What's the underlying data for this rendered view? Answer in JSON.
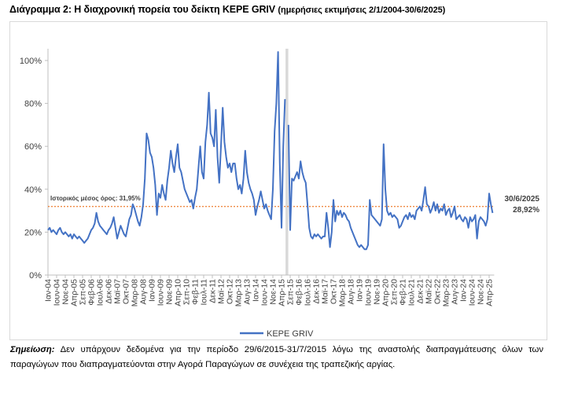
{
  "title": {
    "main": "Διάγραμμα 2: Η διαχρονική πορεία του δείκτη ΚΕΡΕ GRIV",
    "sub": "(ημερήσιες εκτιμήσεις 2/1/2004-30/6/2025)"
  },
  "note": {
    "label": "Σημείωση:",
    "text": "Δεν υπάρχουν δεδομένα για την περίοδο 29/6/2015-31/7/2015 λόγω της αναστολής διαπραγμάτευσης όλων των παραγώγων που διαπραγματεύονται στην Αγορά Παραγώγων σε συνέχεια της τραπεζικής αργίας."
  },
  "chart_data": {
    "type": "line",
    "title": "",
    "xlabel": "",
    "ylabel": "",
    "ylim": [
      0,
      110
    ],
    "y_ticks": [
      "0%",
      "20%",
      "40%",
      "60%",
      "80%",
      "100%"
    ],
    "y_tick_values": [
      0,
      20,
      40,
      60,
      80,
      100
    ],
    "x_start": "2004-01",
    "x_end": "2025-06",
    "x_tick_labels": [
      "Ιαν-04",
      "Ιουν-04",
      "Νοε-04",
      "Απρ-05",
      "Σεπ-05",
      "Φεβ-06",
      "Ιουλ-06",
      "Δεκ-06",
      "Μαϊ-07",
      "Οκτ-07",
      "Μαρ-08",
      "Αυγ-08",
      "Ιαν-09",
      "Ιουν-09",
      "Νοε-09",
      "Απρ-10",
      "Σεπ-10",
      "Φεβ-11",
      "Ιουλ-11",
      "Δεκ-11",
      "Μαϊ-12",
      "Οκτ-12",
      "Μαρ-13",
      "Αυγ-13",
      "Ιαν-14",
      "Ιουν-14",
      "Νοε-14",
      "Απρ-15",
      "Σεπ-15",
      "Φεβ-16",
      "Ιουλ-16",
      "Δεκ-16",
      "Μαϊ-17",
      "Οκτ-17",
      "Μαρ-18",
      "Αυγ-18",
      "Ιαν-19",
      "Ιουν-19",
      "Νοε-19",
      "Απρ-20",
      "Σεπ-20",
      "Φεβ-21",
      "Ιουλ-21",
      "Δεκ-21",
      "Μαϊ-22",
      "Οκτ-22",
      "Μαρ-23",
      "Αυγ-23",
      "Ιαν-24",
      "Ιουν-24",
      "Νοε-24",
      "Απρ-25"
    ],
    "grid": false,
    "legend_position": "bottom",
    "series": [
      {
        "name": "KEPE GRIV",
        "color": "#4472C4",
        "frequency": "monthly",
        "values": [
          21,
          22,
          20,
          21,
          20,
          19,
          21,
          22,
          20,
          19,
          20,
          19,
          18,
          19,
          17,
          19,
          18,
          17,
          18,
          17,
          16,
          15,
          16,
          17,
          19,
          21,
          22,
          24,
          29,
          25,
          23,
          22,
          21,
          20,
          19,
          21,
          22,
          24,
          27,
          22,
          17,
          20,
          23,
          21,
          19,
          18,
          22,
          26,
          28,
          33,
          31,
          28,
          25,
          23,
          27,
          33,
          45,
          66,
          63,
          57,
          55,
          50,
          42,
          28,
          38,
          36,
          42,
          38,
          35,
          44,
          50,
          58,
          52,
          48,
          55,
          61,
          50,
          48,
          44,
          40,
          38,
          36,
          34,
          35,
          31,
          36,
          40,
          50,
          60,
          48,
          45,
          62,
          70,
          85,
          66,
          64,
          60,
          77,
          55,
          43,
          60,
          78,
          62,
          55,
          50,
          52,
          48,
          52,
          52,
          45,
          40,
          42,
          38,
          45,
          58,
          48,
          43,
          40,
          38,
          35,
          28,
          32,
          35,
          39,
          35,
          31,
          33,
          30,
          28,
          26,
          40,
          67,
          80,
          104,
          52,
          22,
          60,
          82,
          null,
          70,
          21,
          45,
          44,
          46,
          48,
          45,
          53,
          48,
          45,
          43,
          33,
          22,
          18,
          17,
          19,
          18,
          19,
          18,
          17,
          18,
          18,
          29,
          22,
          13,
          20,
          35,
          25,
          30,
          28,
          30,
          27,
          29,
          28,
          26,
          25,
          22,
          20,
          18,
          16,
          14,
          13,
          14,
          13,
          12,
          12,
          14,
          35,
          28,
          27,
          26,
          25,
          24,
          23,
          26,
          61,
          40,
          30,
          28,
          29,
          27,
          28,
          27,
          26,
          22,
          23,
          25,
          27,
          28,
          26,
          29,
          27,
          28,
          26,
          30,
          31,
          32,
          30,
          35,
          41,
          33,
          32,
          29,
          31,
          34,
          30,
          33,
          29,
          31,
          30,
          33,
          28,
          30,
          31,
          27,
          29,
          32,
          26,
          27,
          28,
          26,
          25,
          27,
          26,
          22,
          27,
          25,
          26,
          28,
          17,
          25,
          27,
          26,
          25,
          23,
          26,
          38,
          33,
          28.92
        ]
      }
    ],
    "mean_line": {
      "value": 31.95,
      "label": "Ιστορικός μέσος όρος: 31,95%",
      "color": "#ED7D31"
    },
    "gap_marker": {
      "period": "29/6/2015-31/7/2015",
      "color": "#d9d9d9"
    },
    "end_annotation": {
      "date": "30/6/2025",
      "value": "28,92%"
    }
  }
}
